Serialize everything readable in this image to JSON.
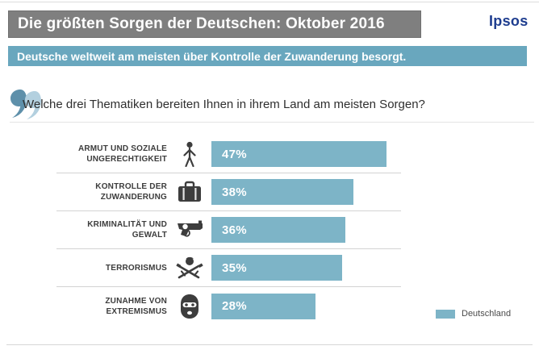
{
  "page": {
    "title_bar": "Die größten Sorgen der Deutschen: Oktober 2016",
    "logo": "Ipsos",
    "subtitle": "Deutsche weltweit am meisten über Kontrolle der Zuwanderung besorgt.",
    "question": "Welche drei Thematiken bereiten Ihnen in ihrem Land am meisten Sorgen?"
  },
  "legend": {
    "label": "Deutschland",
    "color": "#7db4c7"
  },
  "colors": {
    "title_bar_bg": "#7f7f7f",
    "subtitle_bg": "#69a7be",
    "bar": "#7db4c7",
    "logo_blue": "#1e3d8f",
    "quote_dark": "#5e90aa",
    "quote_light": "#b3d0df"
  },
  "chart_data": {
    "type": "bar",
    "orientation": "horizontal",
    "title": "Die größten Sorgen der Deutschen: Oktober 2016",
    "question": "Welche drei Thematiken bereiten Ihnen in ihrem Land am meisten Sorgen?",
    "series_name": "Deutschland",
    "categories": [
      "Armut und soziale Ungerechtigkeit",
      "Kontrolle der Zuwanderung",
      "Kriminalität und Gewalt",
      "Terrorismus",
      "Zunahme von Extremismus"
    ],
    "values": [
      47,
      38,
      36,
      35,
      28
    ],
    "value_labels": [
      "47%",
      "38%",
      "36%",
      "35%",
      "28%"
    ],
    "icons": [
      "person-icon",
      "suitcase-icon",
      "revolver-icon",
      "terrorist-icon",
      "balaclava-icon"
    ],
    "bar_color": "#7db4c7",
    "xlim": [
      0,
      100
    ],
    "grid": false,
    "legend_position": "bottom-right"
  }
}
